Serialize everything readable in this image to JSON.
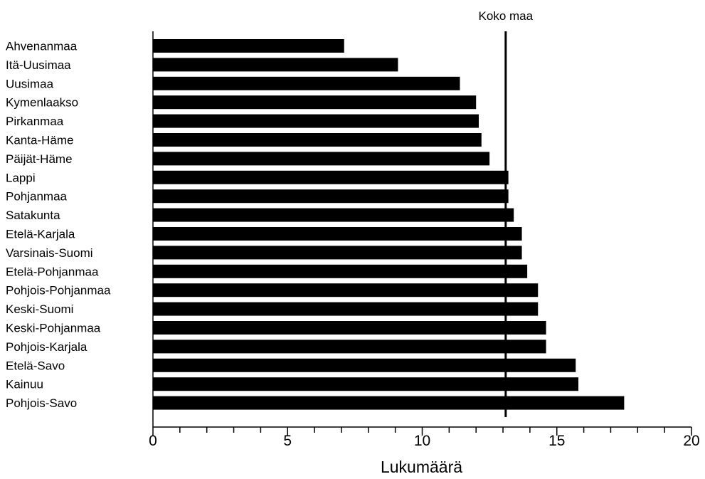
{
  "chart_data": {
    "type": "bar",
    "orientation": "horizontal",
    "categories": [
      "Ahvenanmaa",
      "Itä-Uusimaa",
      "Uusimaa",
      "Kymenlaakso",
      "Pirkanmaa",
      "Kanta-Häme",
      "Päijät-Häme",
      "Lappi",
      "Pohjanmaa",
      "Satakunta",
      "Etelä-Karjala",
      "Varsinais-Suomi",
      "Etelä-Pohjanmaa",
      "Pohjois-Pohjanmaa",
      "Keski-Suomi",
      "Keski-Pohjanmaa",
      "Pohjois-Karjala",
      "Etelä-Savo",
      "Kainuu",
      "Pohjois-Savo"
    ],
    "values": [
      7.1,
      9.1,
      11.4,
      12.0,
      12.1,
      12.2,
      12.5,
      13.2,
      13.2,
      13.4,
      13.7,
      13.7,
      13.9,
      14.3,
      14.3,
      14.6,
      14.6,
      15.7,
      15.8,
      17.5
    ],
    "xlabel": "Lukumäärä",
    "ylabel": "",
    "xlim": [
      0,
      20
    ],
    "xticks": [
      "0",
      "5",
      "10",
      "15",
      "20"
    ],
    "minor_tick_step": 1,
    "reference_line": {
      "label": "Koko maa",
      "value": 13.1
    },
    "grid": false,
    "bar_color": "#000000"
  }
}
